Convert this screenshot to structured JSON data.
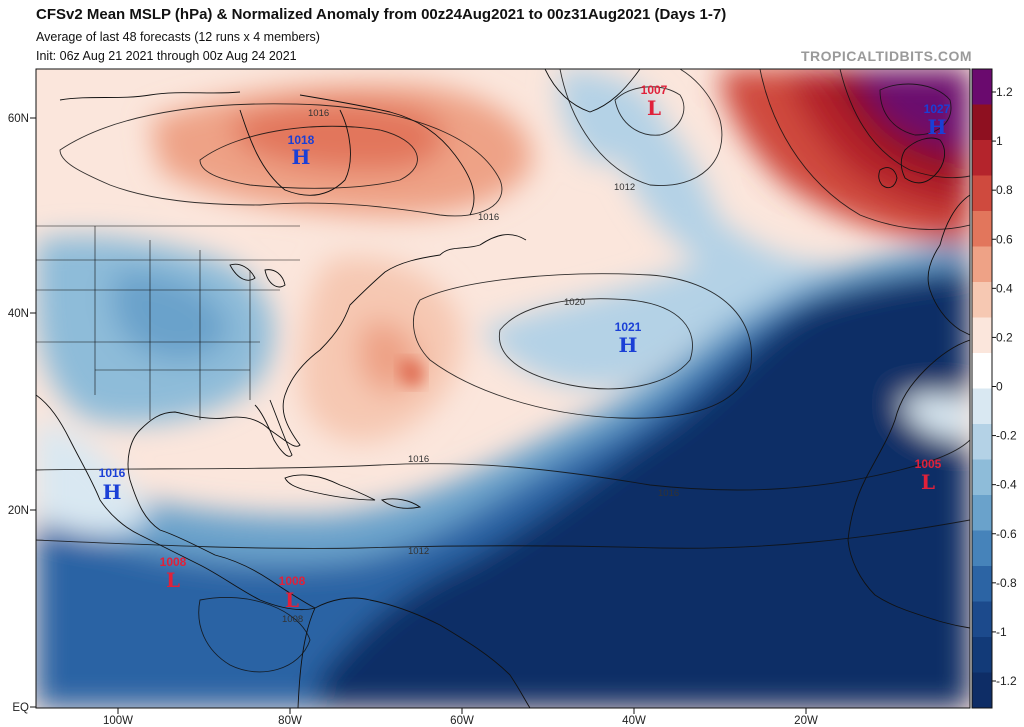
{
  "header": {
    "title": "CFSv2 Mean MSLP (hPa) & Normalized Anomaly from 00z24Aug2021 to 00z31Aug2021 (Days 1-7)",
    "subtitle1": "Average of last 48 forecasts (12 runs x 4 members)",
    "subtitle2": "Init: 06z Aug 21 2021 through 00z Aug 24 2021",
    "brand": "TROPICALTIDBITS.COM"
  },
  "axes": {
    "lat_labels": [
      "60N",
      "40N",
      "20N",
      "EQ"
    ],
    "lon_labels": [
      "100W",
      "80W",
      "60W",
      "40W",
      "20W"
    ]
  },
  "colorbar": {
    "labels": [
      "1.2",
      "1",
      "0.8",
      "0.6",
      "0.4",
      "0.2",
      "0",
      "-0.2",
      "-0.4",
      "-0.6",
      "-0.8",
      "-1",
      "-1.2"
    ],
    "colors": [
      "#6a0a6e",
      "#8e1020",
      "#b4242c",
      "#cf4a3e",
      "#e2765c",
      "#eea286",
      "#f6c8b2",
      "#fbe6dc",
      "#ffffff",
      "#d9e8f2",
      "#b4d2e6",
      "#8ebcd9",
      "#6aa2cb",
      "#4683ba",
      "#2c64a4",
      "#1c4a8c",
      "#123a78",
      "#0e2d66"
    ]
  },
  "pressure_centers": [
    {
      "value": "1018",
      "symbol": "H",
      "color": "#1a3fd6"
    },
    {
      "value": "1007",
      "symbol": "L",
      "color": "#e0213a"
    },
    {
      "value": "1027",
      "symbol": "H",
      "color": "#1a3fd6"
    },
    {
      "value": "1021",
      "symbol": "H",
      "color": "#1a3fd6"
    },
    {
      "value": "1016",
      "symbol": "H",
      "color": "#1a3fd6"
    },
    {
      "value": "1005",
      "symbol": "L",
      "color": "#e0213a"
    },
    {
      "value": "1008",
      "symbol": "L",
      "color": "#e0213a"
    },
    {
      "value": "1008",
      "symbol": "L",
      "color": "#e0213a"
    }
  ],
  "isobar_labels": [
    "1016",
    "1012",
    "1016",
    "1020",
    "1016",
    "1016",
    "1012",
    "1008"
  ]
}
